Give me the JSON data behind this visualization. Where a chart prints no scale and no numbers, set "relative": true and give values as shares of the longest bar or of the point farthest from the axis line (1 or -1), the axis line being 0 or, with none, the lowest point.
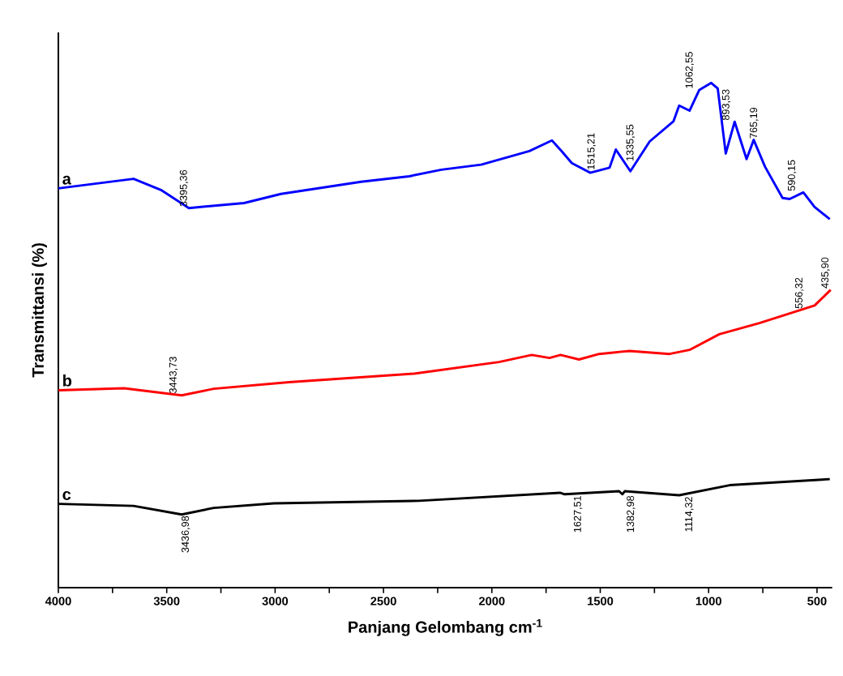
{
  "chart_data": {
    "type": "line",
    "relative": true,
    "xlabel": "Panjang Gelombang cm$^{-1}$",
    "ylabel": "Transmittansi (%)",
    "xlim": [
      4000,
      430
    ],
    "xticks": [
      4000,
      {
        "value": 3750,
        "label": null
      },
      3500,
      {
        "value": 3250,
        "label": null
      },
      3000,
      {
        "value": 2750,
        "label": null
      },
      2500,
      {
        "value": 2250,
        "label": null
      },
      2000,
      {
        "value": 1750,
        "label": null
      },
      1500,
      {
        "value": 1250,
        "label": null
      },
      1000,
      {
        "value": 750,
        "label": null
      },
      500
    ],
    "line_style": "solid",
    "marker": "none",
    "series": [
      {
        "name": "a",
        "color": "#0000ff",
        "x": [
          4000,
          3653,
          3527,
          3398,
          3143,
          2973,
          2603,
          2381,
          2233,
          2049,
          1827,
          1723,
          1679,
          1631,
          1546,
          1457,
          1428,
          1361,
          1272,
          1162,
          1136,
          1088,
          1043,
          988,
          958,
          921,
          880,
          825,
          792,
          740,
          659,
          626,
          563,
          511,
          441
        ],
        "values": [
          0.791,
          0.81,
          0.788,
          0.752,
          0.762,
          0.78,
          0.804,
          0.815,
          0.828,
          0.838,
          0.865,
          0.886,
          0.865,
          0.841,
          0.822,
          0.832,
          0.868,
          0.825,
          0.884,
          0.924,
          0.955,
          0.945,
          0.986,
          1.0,
          0.989,
          0.86,
          0.923,
          0.849,
          0.887,
          0.834,
          0.772,
          0.77,
          0.783,
          0.754,
          0.73
        ]
      },
      {
        "name": "b",
        "color": "#ff0000",
        "x": [
          4000,
          3697,
          3431,
          3283,
          2936,
          2359,
          1967,
          1816,
          1734,
          1683,
          1598,
          1505,
          1365,
          1180,
          1088,
          951,
          766,
          511,
          437
        ],
        "values": [
          0.391,
          0.395,
          0.381,
          0.394,
          0.407,
          0.424,
          0.447,
          0.461,
          0.455,
          0.461,
          0.452,
          0.463,
          0.469,
          0.463,
          0.471,
          0.502,
          0.524,
          0.559,
          0.59
        ]
      },
      {
        "name": "c",
        "color": "#000000",
        "x": [
          4000,
          3653,
          3431,
          3283,
          3006,
          2337,
          1686,
          1664,
          1413,
          1398,
          1387,
          1136,
          903,
          441
        ],
        "values": [
          0.166,
          0.162,
          0.145,
          0.158,
          0.167,
          0.172,
          0.188,
          0.185,
          0.191,
          0.185,
          0.191,
          0.183,
          0.203,
          0.215
        ]
      }
    ],
    "annotations": [
      {
        "text": "3395,36",
        "x": 3395.36,
        "y": 0.752
      },
      {
        "text": "1515,21",
        "x": 1515.21,
        "y": 0.825
      },
      {
        "text": "1335,55",
        "x": 1335.55,
        "y": 0.842
      },
      {
        "text": "1062,55",
        "x": 1062.55,
        "y": 0.968
      },
      {
        "text": "893,53",
        "x": 893.53,
        "y": 0.881
      },
      {
        "text": "765,19",
        "x": 765.19,
        "y": 0.86
      },
      {
        "text": "590,15",
        "x": 590.15,
        "y": 0.776
      },
      {
        "text": "556,32",
        "x": 556.32,
        "y": 0.55
      },
      {
        "text": "435,90",
        "x": 435.9,
        "y": 0.59
      },
      {
        "text": "3443,73",
        "x": 3443.73,
        "y": 0.382
      },
      {
        "text": "3436,98",
        "x": 3436.98,
        "y": 0.145
      },
      {
        "text": "1627,51",
        "x": 1627.51,
        "y": 0.186
      },
      {
        "text": "1382,98",
        "x": 1382.98,
        "y": 0.191
      },
      {
        "text": "1114,32",
        "x": 1114.32,
        "y": 0.185
      }
    ]
  }
}
